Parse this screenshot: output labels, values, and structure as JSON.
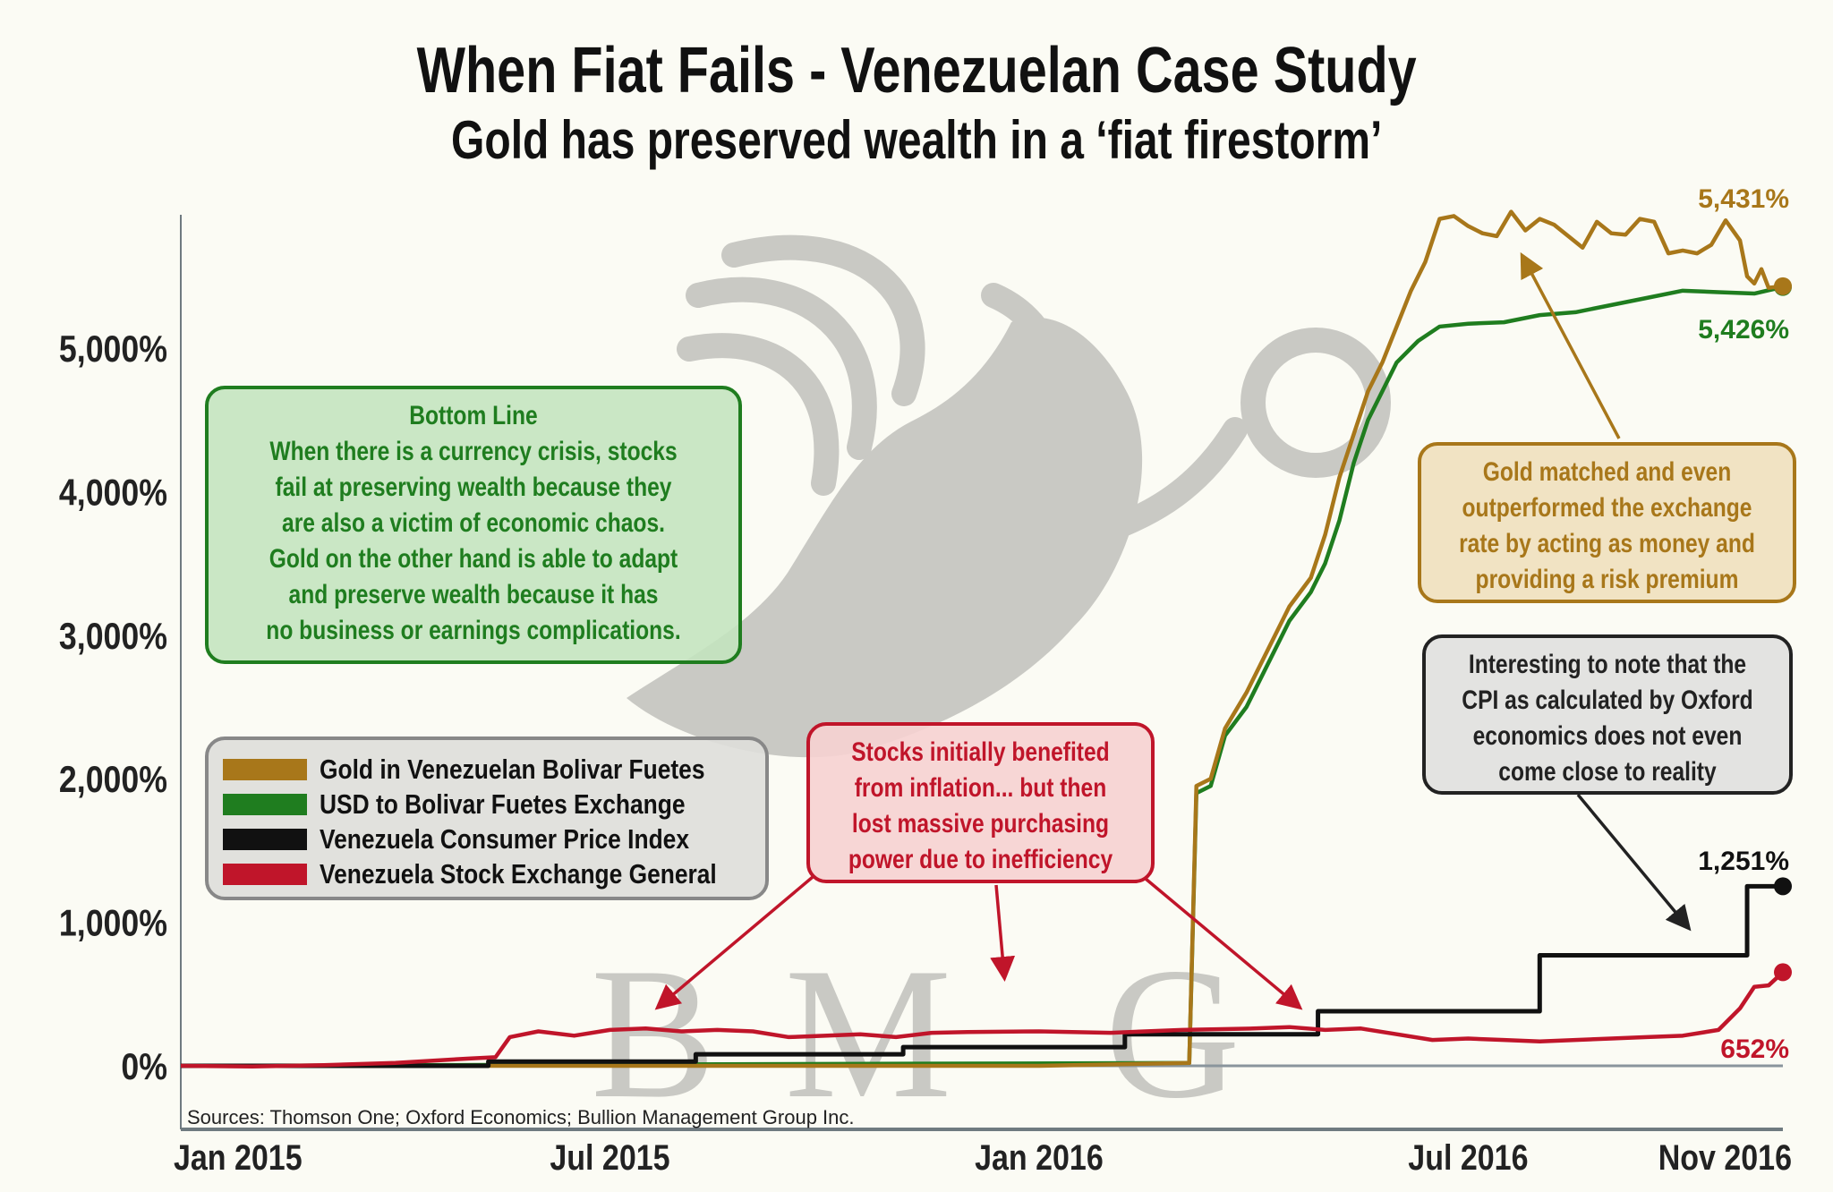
{
  "title": "When Fiat Fails - Venezuelan Case Study",
  "subtitle": "Gold has preserved wealth in a ‘fiat firestorm’",
  "watermark": "BMG",
  "colors": {
    "gold": "#a8771a",
    "usd": "#1f7d1f",
    "cpi": "#111111",
    "stock": "#c0152a",
    "background": "#fbfbf4"
  },
  "bottom_line": {
    "heading": "Bottom Line",
    "lines": [
      "When there is a currency crisis, stocks",
      "fail at preserving wealth because they",
      "are also a victim of economic chaos.",
      "Gold on the other hand is able to adapt",
      "and preserve wealth because it has",
      "no business or earnings complications."
    ]
  },
  "stocks_note": {
    "lines": [
      "Stocks initially benefited",
      "from inflation... but then",
      "lost massive purchasing",
      "power due to inefficiency"
    ]
  },
  "gold_note": {
    "lines": [
      "Gold matched and even",
      "outperformed the exchange",
      "rate by acting as money and",
      "providing a risk premium"
    ]
  },
  "cpi_note": {
    "lines": [
      "Interesting to note that the",
      "CPI as calculated by Oxford",
      "economics does not even",
      "come close to reality"
    ]
  },
  "sources": "Sources: Thomson One; Oxford Economics; Bullion Management Group Inc.",
  "chart_data": {
    "type": "line",
    "title": "When Fiat Fails - Venezuelan Case Study",
    "xlabel": "",
    "ylabel": "",
    "x_unit": "months since Jan 2015",
    "xlim": [
      0,
      22.4
    ],
    "ylim": [
      -400,
      6300
    ],
    "x_ticks": [
      {
        "x": 0,
        "label": "Jan 2015"
      },
      {
        "x": 6,
        "label": "Jul 2015"
      },
      {
        "x": 12,
        "label": "Jan 2016"
      },
      {
        "x": 18,
        "label": "Jul 2016"
      },
      {
        "x": 22,
        "label": "Nov 2016"
      }
    ],
    "y_ticks": [
      {
        "y": 0,
        "label": "0%"
      },
      {
        "y": 1000,
        "label": "1,000%"
      },
      {
        "y": 2000,
        "label": "2,000%"
      },
      {
        "y": 3000,
        "label": "3,000%"
      },
      {
        "y": 4000,
        "label": "4,000%"
      },
      {
        "y": 5000,
        "label": "5,000%"
      }
    ],
    "legend_position": "middle-left",
    "series": [
      {
        "name": "Gold in Venezuelan Bolivar Fuetes",
        "key": "gold",
        "end_label": "5,431%",
        "step": false,
        "points": [
          [
            0,
            0
          ],
          [
            6,
            0
          ],
          [
            12,
            0
          ],
          [
            14.1,
            20
          ],
          [
            14.2,
            1950
          ],
          [
            14.4,
            2000
          ],
          [
            14.6,
            2350
          ],
          [
            14.9,
            2600
          ],
          [
            15.2,
            2900
          ],
          [
            15.5,
            3200
          ],
          [
            15.8,
            3400
          ],
          [
            16.0,
            3700
          ],
          [
            16.2,
            4100
          ],
          [
            16.4,
            4400
          ],
          [
            16.6,
            4700
          ],
          [
            16.8,
            4900
          ],
          [
            17.0,
            5150
          ],
          [
            17.2,
            5400
          ],
          [
            17.4,
            5600
          ],
          [
            17.6,
            5900
          ],
          [
            17.8,
            5920
          ],
          [
            18.0,
            5850
          ],
          [
            18.2,
            5800
          ],
          [
            18.4,
            5780
          ],
          [
            18.6,
            5950
          ],
          [
            18.8,
            5820
          ],
          [
            19.0,
            5900
          ],
          [
            19.2,
            5860
          ],
          [
            19.4,
            5780
          ],
          [
            19.6,
            5700
          ],
          [
            19.8,
            5880
          ],
          [
            20.0,
            5800
          ],
          [
            20.2,
            5790
          ],
          [
            20.4,
            5900
          ],
          [
            20.6,
            5880
          ],
          [
            20.8,
            5660
          ],
          [
            21.0,
            5680
          ],
          [
            21.2,
            5660
          ],
          [
            21.4,
            5720
          ],
          [
            21.6,
            5890
          ],
          [
            21.8,
            5750
          ],
          [
            21.9,
            5500
          ],
          [
            22.0,
            5450
          ],
          [
            22.1,
            5550
          ],
          [
            22.2,
            5420
          ],
          [
            22.4,
            5431
          ]
        ]
      },
      {
        "name": "USD to Bolivar Fuetes Exchange",
        "key": "usd",
        "end_label": "5,426%",
        "step": false,
        "points": [
          [
            0,
            0
          ],
          [
            14.1,
            20
          ],
          [
            14.2,
            1900
          ],
          [
            14.4,
            1950
          ],
          [
            14.6,
            2300
          ],
          [
            14.9,
            2500
          ],
          [
            15.2,
            2800
          ],
          [
            15.5,
            3100
          ],
          [
            15.8,
            3300
          ],
          [
            16.0,
            3500
          ],
          [
            16.2,
            3800
          ],
          [
            16.4,
            4200
          ],
          [
            16.6,
            4500
          ],
          [
            16.8,
            4700
          ],
          [
            17.0,
            4900
          ],
          [
            17.3,
            5050
          ],
          [
            17.6,
            5150
          ],
          [
            18.0,
            5170
          ],
          [
            18.5,
            5180
          ],
          [
            19.0,
            5230
          ],
          [
            19.5,
            5250
          ],
          [
            20.0,
            5300
          ],
          [
            20.5,
            5350
          ],
          [
            21.0,
            5400
          ],
          [
            21.5,
            5390
          ],
          [
            22.0,
            5380
          ],
          [
            22.4,
            5426
          ]
        ]
      },
      {
        "name": "Venezuela Consumer Price Index",
        "key": "cpi",
        "end_label": "1,251%",
        "step": true,
        "points": [
          [
            0,
            0
          ],
          [
            4.3,
            30
          ],
          [
            7.2,
            80
          ],
          [
            10.1,
            130
          ],
          [
            13.2,
            220
          ],
          [
            15.9,
            380
          ],
          [
            19.0,
            770
          ],
          [
            21.9,
            1251
          ],
          [
            22.4,
            1251
          ]
        ]
      },
      {
        "name": "Venezuela Stock Exchange General",
        "key": "stock",
        "end_label": "652%",
        "step": false,
        "points": [
          [
            0,
            0
          ],
          [
            1,
            -5
          ],
          [
            2,
            5
          ],
          [
            3,
            20
          ],
          [
            4,
            50
          ],
          [
            4.4,
            60
          ],
          [
            4.6,
            200
          ],
          [
            5,
            240
          ],
          [
            5.5,
            210
          ],
          [
            6,
            250
          ],
          [
            6.5,
            260
          ],
          [
            7,
            240
          ],
          [
            7.5,
            250
          ],
          [
            8,
            240
          ],
          [
            8.5,
            200
          ],
          [
            9,
            210
          ],
          [
            9.5,
            220
          ],
          [
            10,
            200
          ],
          [
            10.5,
            230
          ],
          [
            11,
            235
          ],
          [
            12,
            240
          ],
          [
            13,
            230
          ],
          [
            14,
            250
          ],
          [
            15,
            260
          ],
          [
            15.5,
            270
          ],
          [
            16,
            250
          ],
          [
            16.5,
            260
          ],
          [
            17,
            220
          ],
          [
            17.5,
            180
          ],
          [
            18,
            190
          ],
          [
            18.5,
            180
          ],
          [
            19,
            170
          ],
          [
            19.5,
            180
          ],
          [
            20,
            190
          ],
          [
            20.5,
            200
          ],
          [
            21,
            210
          ],
          [
            21.5,
            250
          ],
          [
            21.8,
            400
          ],
          [
            22,
            550
          ],
          [
            22.2,
            560
          ],
          [
            22.4,
            652
          ]
        ]
      }
    ]
  }
}
